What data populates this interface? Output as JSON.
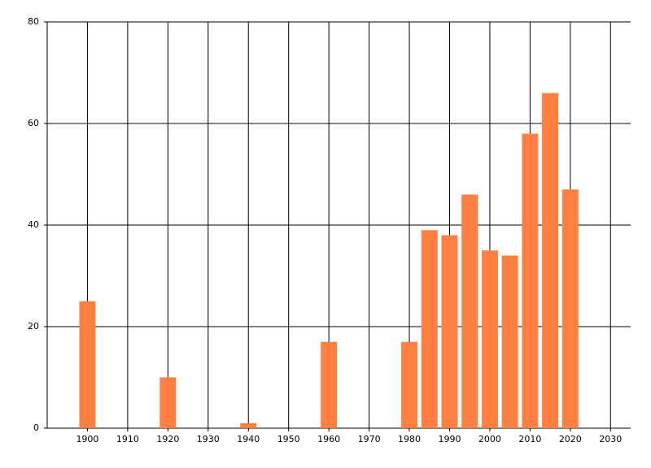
{
  "chart_data": {
    "type": "bar",
    "x": [
      1900,
      1920,
      1940,
      1960,
      1980,
      1985,
      1990,
      1995,
      2000,
      2005,
      2010,
      2015,
      2020
    ],
    "values": [
      25,
      10,
      1,
      17,
      17,
      39,
      38,
      46,
      35,
      34,
      58,
      66,
      47
    ],
    "color": "#ff8040",
    "xlim": [
      1890,
      2035
    ],
    "xticks": [
      1900,
      1910,
      1920,
      1930,
      1940,
      1950,
      1960,
      1970,
      1980,
      1990,
      2000,
      2010,
      2020,
      2030
    ],
    "ylim": [
      0,
      80
    ],
    "yticks": [
      0,
      20,
      40,
      60,
      80
    ],
    "grid": true
  }
}
